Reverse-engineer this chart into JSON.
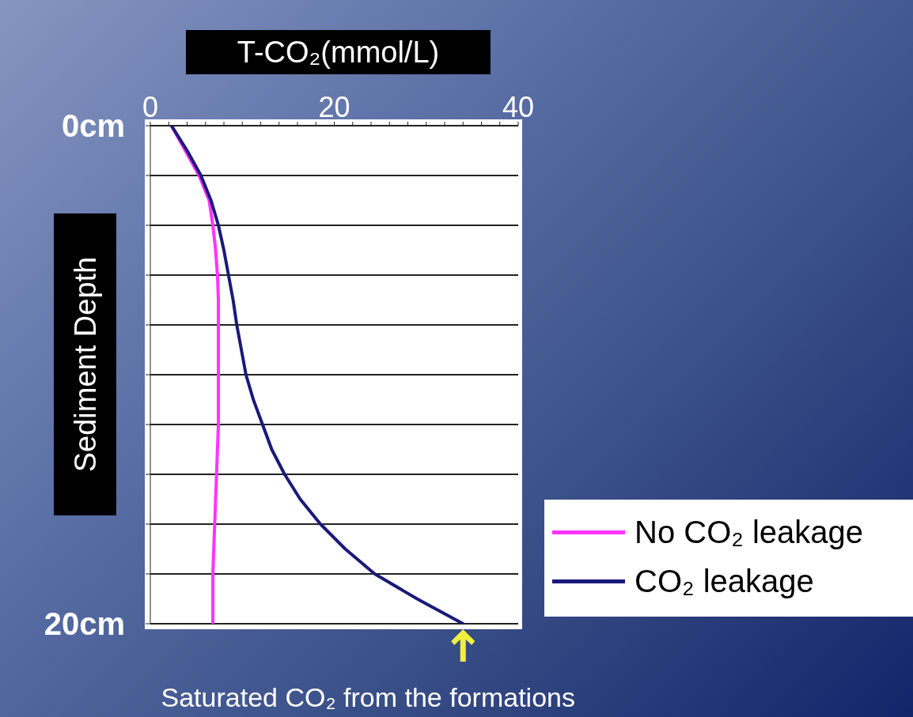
{
  "chart_data": {
    "type": "line",
    "orientation": "horizontal",
    "xlabel": "T-CO₂(mmol/L)",
    "ylabel": "Sediment Depth",
    "x": [
      0,
      1,
      2,
      3,
      4,
      5,
      6,
      7,
      8,
      9,
      10,
      11,
      12,
      13,
      14,
      15,
      16,
      17,
      18,
      19,
      20
    ],
    "series": [
      {
        "name": "No CO₂ leakage",
        "color": "#ff33ff",
        "values": [
          2.3,
          3.8,
          5.3,
          6.4,
          6.8,
          7.1,
          7.3,
          7.4,
          7.4,
          7.4,
          7.4,
          7.4,
          7.4,
          7.3,
          7.2,
          7.1,
          7.0,
          6.9,
          6.8,
          6.8,
          6.8
        ]
      },
      {
        "name": "CO₂ leakage",
        "color": "#1a1a7a",
        "values": [
          2.3,
          4.0,
          5.5,
          6.6,
          7.4,
          8.0,
          8.5,
          9.0,
          9.4,
          9.9,
          10.4,
          11.2,
          12.2,
          13.2,
          14.6,
          16.3,
          18.5,
          21.2,
          24.4,
          29.0,
          34.0
        ]
      }
    ],
    "xlim": [
      0,
      40
    ],
    "xticks": [
      0,
      {
        "value": 2,
        "label": null
      },
      {
        "value": 4,
        "label": null
      },
      {
        "value": 6,
        "label": null
      },
      {
        "value": 8,
        "label": null
      },
      {
        "value": 10,
        "label": null
      },
      {
        "value": 12,
        "label": null
      },
      {
        "value": 14,
        "label": null
      },
      {
        "value": 16,
        "label": null
      },
      {
        "value": 18,
        "label": null
      },
      20,
      {
        "value": 22,
        "label": null
      },
      {
        "value": 24,
        "label": null
      },
      {
        "value": 26,
        "label": null
      },
      {
        "value": 28,
        "label": null
      },
      {
        "value": 30,
        "label": null
      },
      {
        "value": 32,
        "label": null
      },
      {
        "value": 34,
        "label": null
      },
      {
        "value": 36,
        "label": null
      },
      {
        "value": 38,
        "label": null
      },
      40
    ],
    "ylim": [
      20,
      0
    ],
    "yticks": [
      {
        "value": 0,
        "label": "0cm"
      },
      {
        "value": 2,
        "label": null
      },
      {
        "value": 4,
        "label": null
      },
      {
        "value": 6,
        "label": null
      },
      {
        "value": 8,
        "label": null
      },
      {
        "value": 10,
        "label": null
      },
      {
        "value": 12,
        "label": null
      },
      {
        "value": 14,
        "label": null
      },
      {
        "value": 16,
        "label": null
      },
      {
        "value": 18,
        "label": null
      },
      {
        "value": 20,
        "label": "20cm"
      }
    ],
    "grid": "y",
    "legend": "right",
    "marker": "none",
    "line_style": "solid",
    "annotations": [
      {
        "text": "Saturated CO₂ from the formations",
        "x": 34,
        "y": 20
      }
    ]
  }
}
